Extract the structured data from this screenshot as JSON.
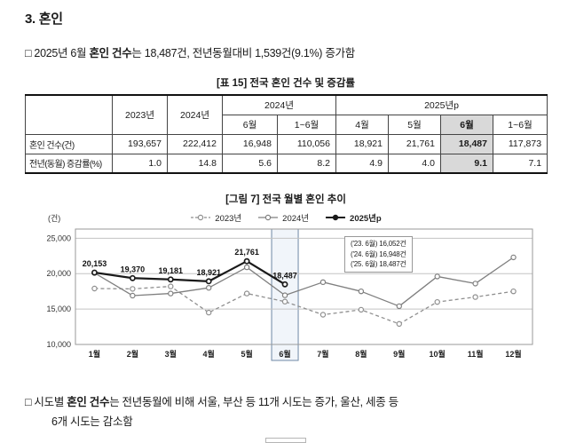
{
  "page": {
    "title": "3. 혼인",
    "summary": {
      "prefix": "□ 2025년 6월 ",
      "bold": "혼인 건수",
      "suffix": "는 18,487건, 전년동월대비 1,539건(9.1%) 증가함"
    },
    "footer": {
      "prefix": "□ 시도별 ",
      "bold": "혼인 건수",
      "suffix": "는 전년동월에 비해 서울, 부산 등 11개 시도는 증가, 울산, 세종 등",
      "line2": "6개 시도는 감소함"
    }
  },
  "table": {
    "title": "[표 15] 전국 혼인 건수 및 증감률",
    "col_groups": {
      "y2023": "2023년",
      "y2024": "2024년",
      "g2024": "2024년",
      "g2025": "2025년p"
    },
    "sub_headers": [
      "6월",
      "1~6월",
      "4월",
      "5월",
      "6월",
      "1~6월"
    ],
    "rows": [
      {
        "label": "혼인 건수(건)",
        "values": [
          "193,657",
          "222,412",
          "16,948",
          "110,056",
          "18,921",
          "21,761",
          "18,487",
          "117,873"
        ]
      },
      {
        "label": "전년(동월) 증감률(%)",
        "values": [
          "1.0",
          "14.8",
          "5.6",
          "8.2",
          "4.9",
          "4.0",
          "9.1",
          "7.1"
        ]
      }
    ]
  },
  "chart_data": {
    "type": "line",
    "title": "[그림 7] 전국 월별 혼인 추이",
    "y_unit_label": "(건)",
    "x": [
      "1월",
      "2월",
      "3월",
      "4월",
      "5월",
      "6월",
      "7월",
      "8월",
      "9월",
      "10월",
      "11월",
      "12월"
    ],
    "y_ticks": [
      10000,
      15000,
      20000,
      25000
    ],
    "ylim": [
      10000,
      26300
    ],
    "grid": true,
    "legend_position": "top",
    "series": [
      {
        "name": "2023년",
        "style": "dashed",
        "color": "#8f8f8f",
        "values": [
          17900,
          17850,
          18200,
          14500,
          17200,
          16052,
          14200,
          14900,
          12900,
          16000,
          16700,
          17500
        ]
      },
      {
        "name": "2024년",
        "style": "solid",
        "color": "#7f7f7f",
        "values": [
          20100,
          16900,
          17200,
          18000,
          20900,
          16948,
          18800,
          17500,
          15400,
          19600,
          18600,
          22300
        ]
      },
      {
        "name": "2025년p",
        "style": "solid-bold",
        "color": "#1a1a1a",
        "values": [
          20153,
          19370,
          19181,
          18921,
          21761,
          18487
        ]
      }
    ],
    "point_labels": {
      "series": "2025년p",
      "labels": [
        "20,153",
        "19,370",
        "19,181",
        "18,921",
        "21,761",
        "18,487"
      ]
    },
    "highlight": {
      "month": "6월",
      "month_index": 5,
      "fill": "#e7eef7",
      "border": "#6f88a5"
    },
    "annotation_box": {
      "lines": [
        "('23. 6월) 16,052건",
        "('24. 6월) 16,948건",
        "('25. 6월) 18,487건"
      ]
    }
  }
}
